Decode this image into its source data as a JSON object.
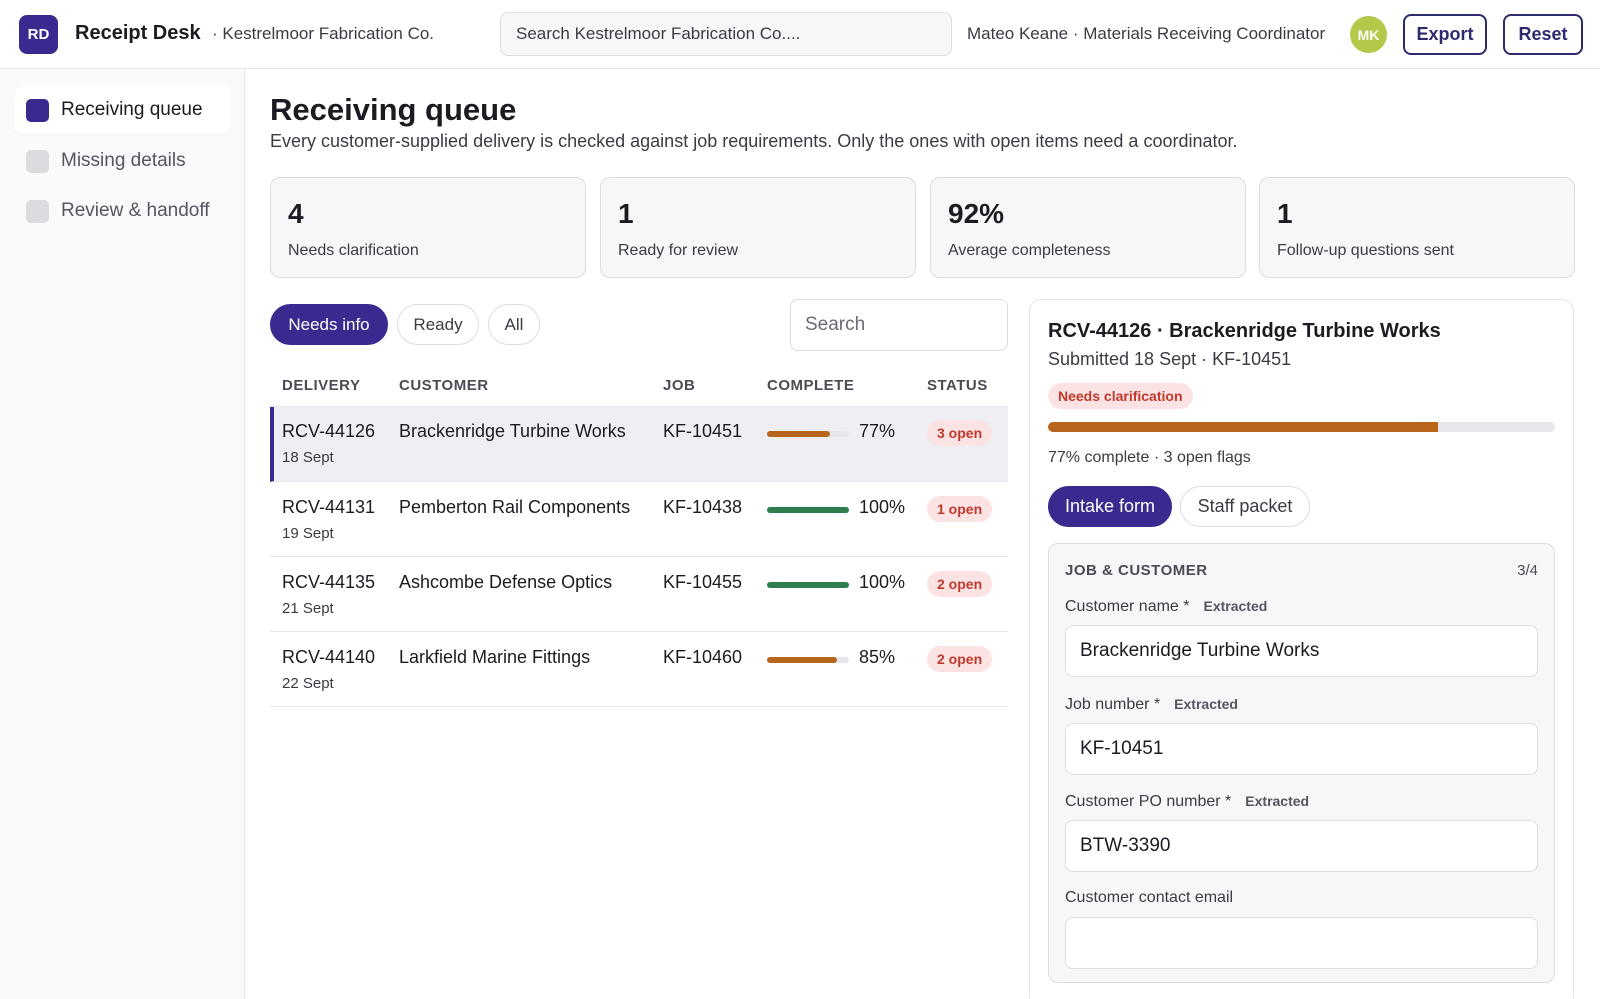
{
  "app": {
    "badge": "RD",
    "name": "Receipt Desk",
    "org": "· Kestrelmoor Fabrication Co.",
    "search_placeholder": "Search Kestrelmoor Fabrication Co....",
    "user": "Mateo Keane · Materials Receiving Coordinator",
    "avatar": "MK",
    "export_label": "Export",
    "reset_label": "Reset"
  },
  "sidebar": {
    "items": [
      {
        "label": "Receiving queue",
        "active": true
      },
      {
        "label": "Missing details",
        "active": false
      },
      {
        "label": "Review & handoff",
        "active": false
      }
    ]
  },
  "main": {
    "title": "Receiving queue",
    "subtitle": "Every customer-supplied delivery is checked against job requirements. Only the ones with open items need a coordinator.",
    "stats": [
      {
        "value": "4",
        "label": "Needs clarification"
      },
      {
        "value": "1",
        "label": "Ready for review"
      },
      {
        "value": "92%",
        "label": "Average completeness"
      },
      {
        "value": "1",
        "label": "Follow-up questions sent"
      }
    ],
    "filters": [
      "Needs info",
      "Ready",
      "All"
    ],
    "table_search_placeholder": "Search",
    "columns": [
      "DELIVERY",
      "CUSTOMER",
      "JOB",
      "COMPLETE",
      "STATUS"
    ],
    "rows": [
      {
        "id": "RCV-44126",
        "date": "18 Sept",
        "customer": "Brackenridge Turbine Works",
        "job": "KF-10451",
        "complete": 77,
        "complete_label": "77%",
        "status": "3 open",
        "selected": true
      },
      {
        "id": "RCV-44131",
        "date": "19 Sept",
        "customer": "Pemberton Rail Components",
        "job": "KF-10438",
        "complete": 100,
        "complete_label": "100%",
        "status": "1 open",
        "selected": false
      },
      {
        "id": "RCV-44135",
        "date": "21 Sept",
        "customer": "Ashcombe Defense Optics",
        "job": "KF-10455",
        "complete": 100,
        "complete_label": "100%",
        "status": "2 open",
        "selected": false
      },
      {
        "id": "RCV-44140",
        "date": "22 Sept",
        "customer": "Larkfield Marine Fittings",
        "job": "KF-10460",
        "complete": 85,
        "complete_label": "85%",
        "status": "2 open",
        "selected": false
      }
    ]
  },
  "detail": {
    "title": "RCV-44126 · Brackenridge Turbine Works",
    "subtitle": "Submitted 18 Sept · KF-10451",
    "status": "Needs clarification",
    "progress": 77,
    "meta": "77% complete · 3 open flags",
    "tabs": [
      "Intake form",
      "Staff packet"
    ],
    "section_title": "JOB & CUSTOMER",
    "section_count": "3/4",
    "fields": [
      {
        "label": "Customer name *",
        "tag": "Extracted",
        "value": "Brackenridge Turbine Works"
      },
      {
        "label": "Job number *",
        "tag": "Extracted",
        "value": "KF-10451"
      },
      {
        "label": "Customer PO number *",
        "tag": "Extracted",
        "value": "BTW-3390"
      },
      {
        "label": "Customer contact email",
        "tag": "",
        "value": ""
      }
    ]
  },
  "colors": {
    "accent": "#3a2a8f",
    "progress_partial": "#b8651e",
    "progress_complete": "#2e7d4f",
    "badge_bg": "#fbe3e3",
    "badge_text": "#c0392b"
  }
}
